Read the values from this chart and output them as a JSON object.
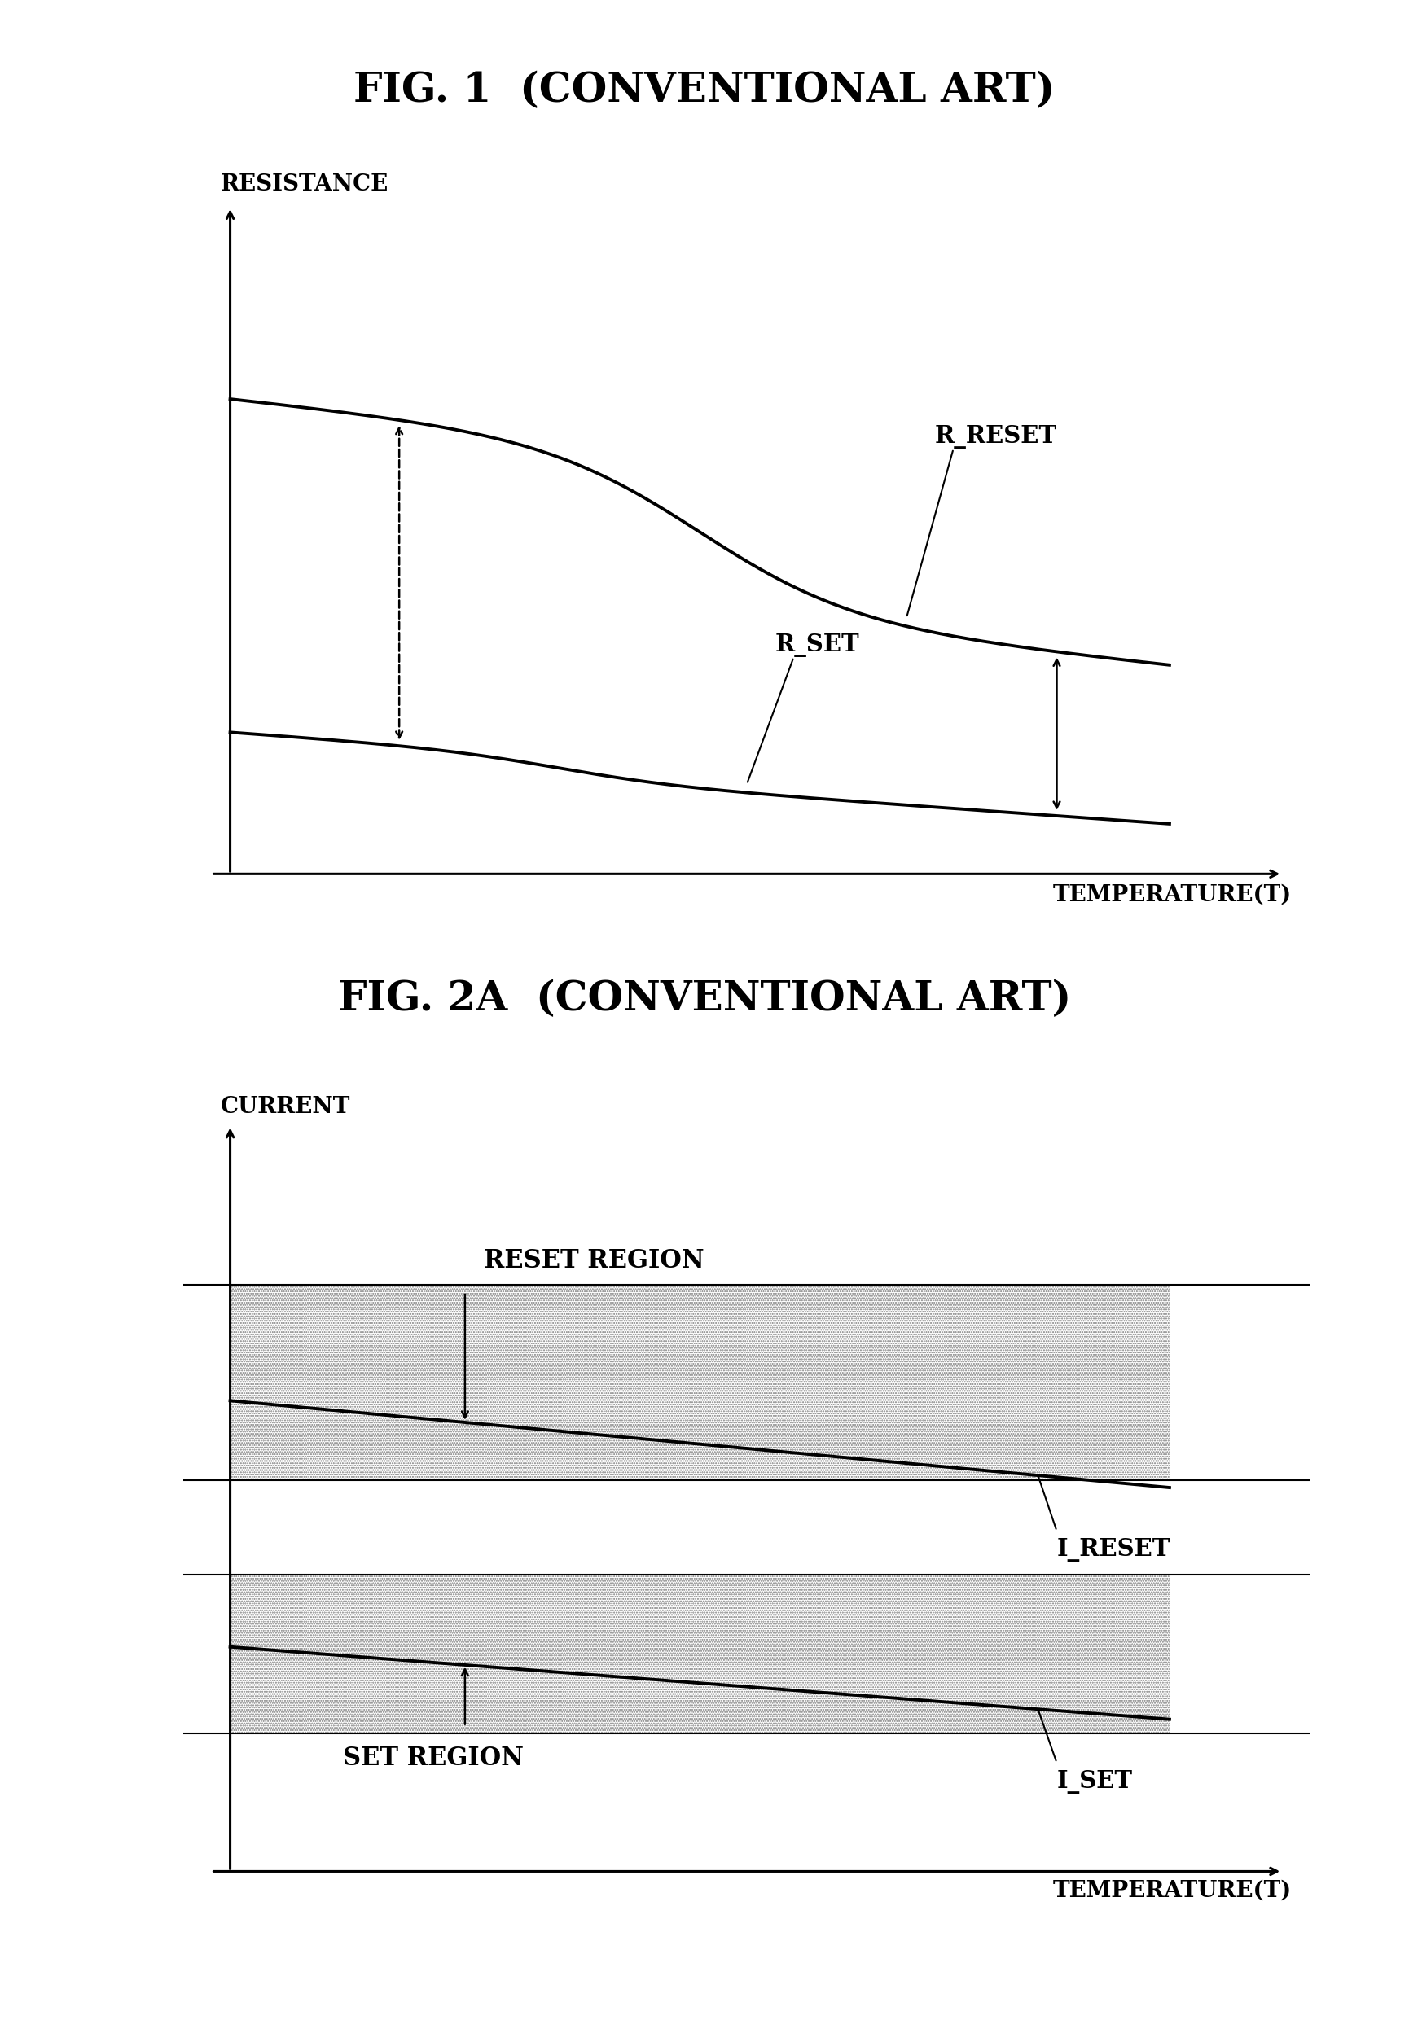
{
  "fig1_title": "FIG. 1  (CONVENTIONAL ART)",
  "fig2_title": "FIG. 2A  (CONVENTIONAL ART)",
  "fig1_ylabel": "RESISTANCE",
  "fig1_xlabel": "TEMPERATURE(T)",
  "fig2_ylabel": "CURRENT",
  "fig2_xlabel": "TEMPERATURE(T)",
  "r_reset_label": "R_RESET",
  "r_set_label": "R_SET",
  "i_reset_label": "I_RESET",
  "i_set_label": "I_SET",
  "reset_region_label": "RESET REGION",
  "set_region_label": "SET REGION",
  "background_color": "#ffffff",
  "line_color": "#000000",
  "title_fontsize": 36,
  "label_fontsize": 20,
  "annotation_fontsize": 21,
  "region_label_fontsize": 22
}
